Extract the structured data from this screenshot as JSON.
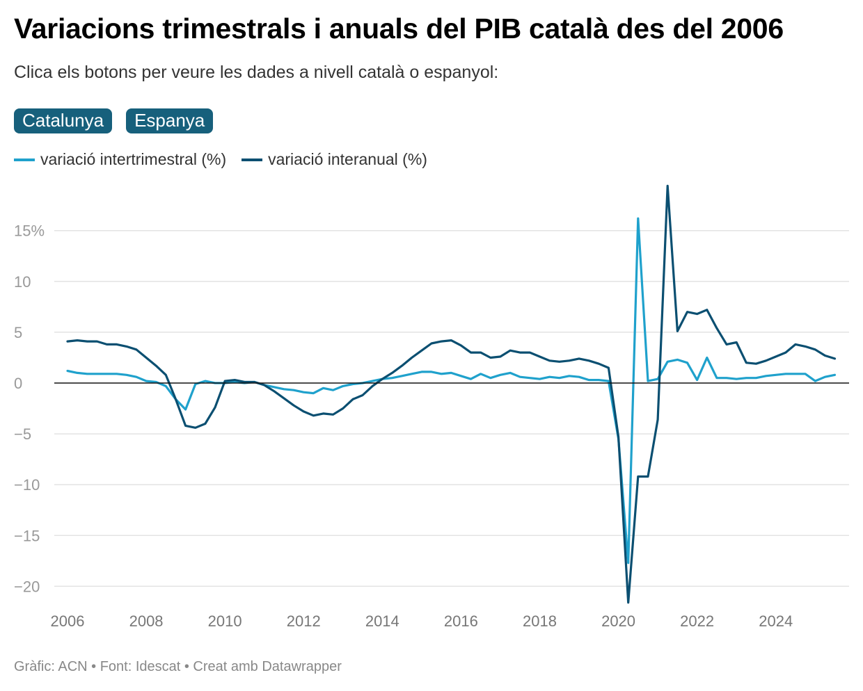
{
  "header": {
    "title": "Variacions trimestrals i anuals del PIB català des del 2006",
    "subtitle": "Clica els botons per veure les dades a nivell català o espanyol:"
  },
  "buttons": [
    {
      "label": "Catalunya"
    },
    {
      "label": "Espanya"
    }
  ],
  "footer": {
    "text": "Gràfic: ACN • Font: Idescat • Creat amb Datawrapper"
  },
  "colors": {
    "quarterly": "#1fa1cc",
    "annual": "#0b4f71",
    "button": "#17607c"
  },
  "chart_data": {
    "type": "line",
    "x_start": "2006 Q1",
    "x_frequency": "quarterly",
    "x_ticks": [
      "2006",
      "2008",
      "2010",
      "2012",
      "2014",
      "2016",
      "2018",
      "2020",
      "2022",
      "2024"
    ],
    "y_ticks": [
      {
        "v": 15,
        "label": "15%"
      },
      {
        "v": 10,
        "label": "10"
      },
      {
        "v": 5,
        "label": "5"
      },
      {
        "v": 0,
        "label": "0"
      },
      {
        "v": -5,
        "label": "−5"
      },
      {
        "v": -10,
        "label": "−10"
      },
      {
        "v": -15,
        "label": "−15"
      },
      {
        "v": -20,
        "label": "−20"
      }
    ],
    "ylim": [
      -22,
      20
    ],
    "grid": true,
    "legend_position": "top-left",
    "series": [
      {
        "name": "variació intertrimestral (%)",
        "values": [
          1.2,
          1.0,
          0.9,
          0.9,
          0.9,
          0.9,
          0.8,
          0.6,
          0.2,
          0.1,
          -0.3,
          -1.6,
          -2.6,
          -0.1,
          0.2,
          0.0,
          0.0,
          0.1,
          0.0,
          0.1,
          -0.2,
          -0.4,
          -0.6,
          -0.7,
          -0.9,
          -1.0,
          -0.5,
          -0.7,
          -0.3,
          -0.1,
          0.0,
          0.2,
          0.4,
          0.5,
          0.7,
          0.9,
          1.1,
          1.1,
          0.9,
          1.0,
          0.7,
          0.4,
          0.9,
          0.5,
          0.8,
          1.0,
          0.6,
          0.5,
          0.4,
          0.6,
          0.5,
          0.7,
          0.6,
          0.3,
          0.3,
          0.2,
          -5.5,
          -17.7,
          16.2,
          0.2,
          0.4,
          2.1,
          2.3,
          2.0,
          0.3,
          2.5,
          0.5,
          0.5,
          0.4,
          0.5,
          0.5,
          0.7,
          0.8,
          0.9,
          0.9,
          0.9,
          0.2,
          0.6,
          0.8
        ]
      },
      {
        "name": "variació interanual (%)",
        "values": [
          4.1,
          4.2,
          4.1,
          4.1,
          3.8,
          3.8,
          3.6,
          3.3,
          2.5,
          1.7,
          0.8,
          -1.6,
          -4.2,
          -4.4,
          -4.0,
          -2.4,
          0.2,
          0.3,
          0.1,
          0.1,
          -0.2,
          -0.8,
          -1.5,
          -2.2,
          -2.8,
          -3.2,
          -3.0,
          -3.1,
          -2.5,
          -1.6,
          -1.2,
          -0.3,
          0.4,
          1.0,
          1.7,
          2.5,
          3.2,
          3.9,
          4.1,
          4.2,
          3.7,
          3.0,
          3.0,
          2.5,
          2.6,
          3.2,
          3.0,
          3.0,
          2.6,
          2.2,
          2.1,
          2.2,
          2.4,
          2.2,
          1.9,
          1.5,
          -5.3,
          -21.6,
          -9.2,
          -9.2,
          -3.6,
          19.4,
          5.1,
          7.0,
          6.8,
          7.2,
          5.4,
          3.8,
          4.0,
          2.0,
          1.9,
          2.2,
          2.6,
          3.0,
          3.8,
          3.6,
          3.3,
          2.7,
          2.4
        ]
      }
    ]
  }
}
